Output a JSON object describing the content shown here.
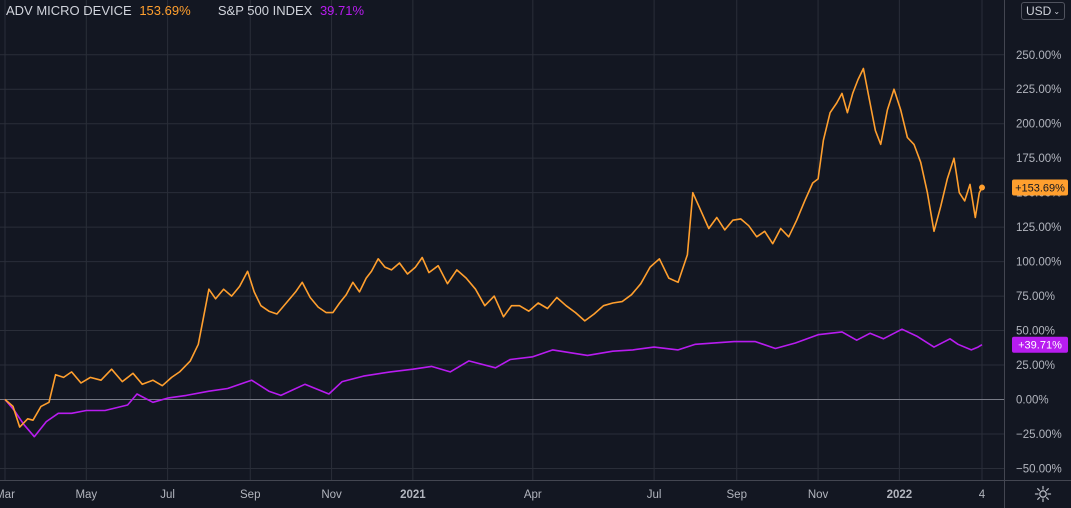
{
  "legend": {
    "series1_name": "ADV MICRO DEVICE",
    "series1_value": "153.69%",
    "series2_name": "S&P 500 INDEX",
    "series2_value": "39.71%"
  },
  "currency": {
    "label": "USD",
    "chevron": "⌄"
  },
  "colors": {
    "background": "#131722",
    "grid": "#2a2e39",
    "axis_text": "#b2b5be",
    "amd": "#ff9f2e",
    "spx": "#b81cf0",
    "zero_line": "#787b86"
  },
  "icons": {
    "settings": "gear-icon"
  },
  "chart_data": {
    "type": "line",
    "ylim": [
      -55,
      265
    ],
    "y_ticks": [
      -50,
      -25,
      0,
      25,
      50,
      75,
      100,
      125,
      150,
      175,
      200,
      225,
      250
    ],
    "y_tick_labels": [
      "−50.00%",
      "−25.00%",
      "0.00%",
      "25.00%",
      "50.00%",
      "75.00%",
      "100.00%",
      "125.00%",
      "150.00%",
      "175.00%",
      "200.00%",
      "225.00%",
      "250.00%"
    ],
    "x_ticks": [
      "2020-03-01",
      "2020-05-01",
      "2020-07-01",
      "2020-09-01",
      "2020-11-01",
      "2021-01-01",
      "2021-04-01",
      "2021-07-01",
      "2021-09-01",
      "2021-11-01",
      "2022-01-01",
      "2022-03-04"
    ],
    "x_tick_labels": [
      "Mar",
      "May",
      "Jul",
      "Sep",
      "Nov",
      "2021",
      "Apr",
      "Jul",
      "Sep",
      "Nov",
      "2022",
      "4"
    ],
    "x_range": [
      "2020-03-01",
      "2022-03-10"
    ],
    "zero_line": true,
    "grid": true,
    "series": [
      {
        "name": "ADV MICRO DEVICE",
        "color": "#ff9f2e",
        "last_label": "+153.69%",
        "points": [
          [
            "2020-03-01",
            0
          ],
          [
            "2020-03-07",
            -5
          ],
          [
            "2020-03-12",
            -20
          ],
          [
            "2020-03-18",
            -14
          ],
          [
            "2020-03-22",
            -15
          ],
          [
            "2020-03-28",
            -5
          ],
          [
            "2020-04-03",
            -2
          ],
          [
            "2020-04-08",
            18
          ],
          [
            "2020-04-14",
            16
          ],
          [
            "2020-04-20",
            20
          ],
          [
            "2020-04-27",
            12
          ],
          [
            "2020-05-04",
            16
          ],
          [
            "2020-05-12",
            14
          ],
          [
            "2020-05-20",
            22
          ],
          [
            "2020-05-28",
            13
          ],
          [
            "2020-06-05",
            19
          ],
          [
            "2020-06-12",
            11
          ],
          [
            "2020-06-20",
            14
          ],
          [
            "2020-06-27",
            10
          ],
          [
            "2020-07-04",
            16
          ],
          [
            "2020-07-10",
            20
          ],
          [
            "2020-07-18",
            28
          ],
          [
            "2020-07-24",
            40
          ],
          [
            "2020-07-28",
            60
          ],
          [
            "2020-08-01",
            80
          ],
          [
            "2020-08-06",
            73
          ],
          [
            "2020-08-12",
            80
          ],
          [
            "2020-08-18",
            75
          ],
          [
            "2020-08-24",
            82
          ],
          [
            "2020-08-30",
            93
          ],
          [
            "2020-09-04",
            78
          ],
          [
            "2020-09-09",
            68
          ],
          [
            "2020-09-15",
            64
          ],
          [
            "2020-09-21",
            62
          ],
          [
            "2020-09-28",
            70
          ],
          [
            "2020-10-05",
            78
          ],
          [
            "2020-10-10",
            85
          ],
          [
            "2020-10-16",
            74
          ],
          [
            "2020-10-22",
            67
          ],
          [
            "2020-10-28",
            63
          ],
          [
            "2020-11-02",
            63
          ],
          [
            "2020-11-07",
            70
          ],
          [
            "2020-11-12",
            76
          ],
          [
            "2020-11-17",
            85
          ],
          [
            "2020-11-22",
            78
          ],
          [
            "2020-11-27",
            88
          ],
          [
            "2020-12-01",
            93
          ],
          [
            "2020-12-06",
            102
          ],
          [
            "2020-12-11",
            96
          ],
          [
            "2020-12-16",
            94
          ],
          [
            "2020-12-22",
            99
          ],
          [
            "2020-12-28",
            91
          ],
          [
            "2021-01-03",
            96
          ],
          [
            "2021-01-08",
            103
          ],
          [
            "2021-01-13",
            92
          ],
          [
            "2021-01-20",
            97
          ],
          [
            "2021-01-27",
            84
          ],
          [
            "2021-02-03",
            94
          ],
          [
            "2021-02-10",
            88
          ],
          [
            "2021-02-17",
            80
          ],
          [
            "2021-02-24",
            68
          ],
          [
            "2021-03-03",
            75
          ],
          [
            "2021-03-10",
            60
          ],
          [
            "2021-03-16",
            68
          ],
          [
            "2021-03-22",
            68
          ],
          [
            "2021-03-29",
            64
          ],
          [
            "2021-04-05",
            70
          ],
          [
            "2021-04-12",
            66
          ],
          [
            "2021-04-19",
            74
          ],
          [
            "2021-04-26",
            68
          ],
          [
            "2021-05-03",
            63
          ],
          [
            "2021-05-10",
            57
          ],
          [
            "2021-05-17",
            62
          ],
          [
            "2021-05-24",
            68
          ],
          [
            "2021-05-31",
            70
          ],
          [
            "2021-06-07",
            71
          ],
          [
            "2021-06-14",
            76
          ],
          [
            "2021-06-21",
            84
          ],
          [
            "2021-06-28",
            96
          ],
          [
            "2021-07-05",
            102
          ],
          [
            "2021-07-12",
            88
          ],
          [
            "2021-07-19",
            85
          ],
          [
            "2021-07-26",
            105
          ],
          [
            "2021-07-30",
            150
          ],
          [
            "2021-08-05",
            137
          ],
          [
            "2021-08-11",
            124
          ],
          [
            "2021-08-17",
            132
          ],
          [
            "2021-08-23",
            123
          ],
          [
            "2021-08-29",
            130
          ],
          [
            "2021-09-04",
            131
          ],
          [
            "2021-09-10",
            126
          ],
          [
            "2021-09-16",
            118
          ],
          [
            "2021-09-22",
            122
          ],
          [
            "2021-09-28",
            113
          ],
          [
            "2021-10-04",
            124
          ],
          [
            "2021-10-10",
            118
          ],
          [
            "2021-10-16",
            130
          ],
          [
            "2021-10-22",
            144
          ],
          [
            "2021-10-28",
            157
          ],
          [
            "2021-11-01",
            160
          ],
          [
            "2021-11-05",
            188
          ],
          [
            "2021-11-10",
            208
          ],
          [
            "2021-11-15",
            215
          ],
          [
            "2021-11-19",
            222
          ],
          [
            "2021-11-23",
            208
          ],
          [
            "2021-11-27",
            222
          ],
          [
            "2021-12-01",
            232
          ],
          [
            "2021-12-05",
            240
          ],
          [
            "2021-12-09",
            220
          ],
          [
            "2021-12-14",
            195
          ],
          [
            "2021-12-18",
            185
          ],
          [
            "2021-12-23",
            210
          ],
          [
            "2021-12-28",
            225
          ],
          [
            "2022-01-02",
            210
          ],
          [
            "2022-01-07",
            190
          ],
          [
            "2022-01-12",
            185
          ],
          [
            "2022-01-17",
            172
          ],
          [
            "2022-01-22",
            150
          ],
          [
            "2022-01-27",
            122
          ],
          [
            "2022-02-01",
            140
          ],
          [
            "2022-02-06",
            160
          ],
          [
            "2022-02-11",
            175
          ],
          [
            "2022-02-15",
            150
          ],
          [
            "2022-02-19",
            144
          ],
          [
            "2022-02-23",
            156
          ],
          [
            "2022-02-27",
            132
          ],
          [
            "2022-03-02",
            150
          ],
          [
            "2022-03-04",
            153.69
          ]
        ]
      },
      {
        "name": "S&P 500 INDEX",
        "color": "#b81cf0",
        "last_label": "+39.71%",
        "points": [
          [
            "2020-03-01",
            0
          ],
          [
            "2020-03-08",
            -8
          ],
          [
            "2020-03-15",
            -18
          ],
          [
            "2020-03-23",
            -27
          ],
          [
            "2020-04-01",
            -16
          ],
          [
            "2020-04-10",
            -10
          ],
          [
            "2020-04-20",
            -10
          ],
          [
            "2020-05-01",
            -8
          ],
          [
            "2020-05-15",
            -8
          ],
          [
            "2020-06-01",
            -4
          ],
          [
            "2020-06-08",
            4
          ],
          [
            "2020-06-20",
            -2
          ],
          [
            "2020-07-01",
            1
          ],
          [
            "2020-07-15",
            3
          ],
          [
            "2020-08-01",
            6
          ],
          [
            "2020-08-15",
            8
          ],
          [
            "2020-09-02",
            14
          ],
          [
            "2020-09-15",
            6
          ],
          [
            "2020-09-24",
            3
          ],
          [
            "2020-10-12",
            11
          ],
          [
            "2020-10-30",
            4
          ],
          [
            "2020-11-09",
            13
          ],
          [
            "2020-11-25",
            17
          ],
          [
            "2020-12-15",
            20
          ],
          [
            "2021-01-01",
            22
          ],
          [
            "2021-01-15",
            24
          ],
          [
            "2021-01-29",
            20
          ],
          [
            "2021-02-12",
            28
          ],
          [
            "2021-03-04",
            23
          ],
          [
            "2021-03-15",
            29
          ],
          [
            "2021-04-01",
            31
          ],
          [
            "2021-04-16",
            36
          ],
          [
            "2021-05-12",
            32
          ],
          [
            "2021-05-31",
            35
          ],
          [
            "2021-06-15",
            36
          ],
          [
            "2021-07-01",
            38
          ],
          [
            "2021-07-19",
            36
          ],
          [
            "2021-08-01",
            40
          ],
          [
            "2021-08-30",
            42
          ],
          [
            "2021-09-15",
            42
          ],
          [
            "2021-09-30",
            37
          ],
          [
            "2021-10-15",
            41
          ],
          [
            "2021-11-01",
            47
          ],
          [
            "2021-11-19",
            49
          ],
          [
            "2021-11-30",
            43
          ],
          [
            "2021-12-10",
            48
          ],
          [
            "2021-12-20",
            44
          ],
          [
            "2022-01-03",
            51
          ],
          [
            "2022-01-14",
            46
          ],
          [
            "2022-01-27",
            38
          ],
          [
            "2022-02-08",
            44
          ],
          [
            "2022-02-14",
            40
          ],
          [
            "2022-02-24",
            36
          ],
          [
            "2022-03-01",
            38
          ],
          [
            "2022-03-04",
            39.71
          ]
        ]
      }
    ]
  }
}
